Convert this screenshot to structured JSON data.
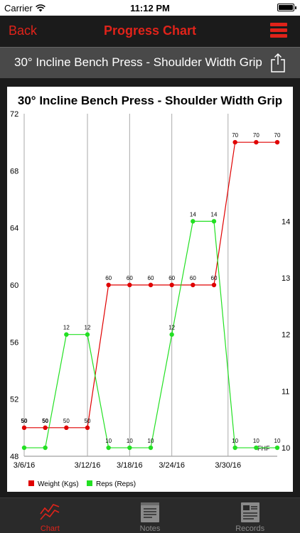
{
  "status_bar": {
    "carrier": "Carrier",
    "time": "11:12 PM"
  },
  "nav": {
    "back_label": "Back",
    "title": "Progress Chart"
  },
  "exercise": {
    "name": "30° Incline Bench Press - Shoulder Width Grip"
  },
  "colors": {
    "accent": "#e0231a",
    "weight": "#e00000",
    "reps": "#22e022"
  },
  "chart_data": {
    "type": "line",
    "title": "30° Incline Bench Press - Shoulder Width Grip",
    "x": [
      "3/6/16",
      "3/8/16",
      "3/10/16",
      "3/12/16",
      "3/16/16",
      "3/18/16",
      "3/20/16",
      "3/24/16",
      "3/26/16",
      "3/28/16",
      "3/31/16",
      "4/2/16",
      "4/4/16"
    ],
    "x_ticks": [
      "3/6/16",
      "3/12/16",
      "3/18/16",
      "3/24/16",
      "3/30/16"
    ],
    "series": [
      {
        "name": "Weight (Kgs)",
        "axis": "left",
        "values": [
          50,
          50,
          50,
          50,
          60,
          60,
          60,
          60,
          60,
          60,
          70,
          70,
          70
        ],
        "labels": [
          "50",
          "50",
          "50",
          "50",
          "60",
          "60",
          "60",
          "60",
          "60",
          "60",
          "70",
          "70",
          "70"
        ]
      },
      {
        "name": "Reps (Reps)",
        "axis": "right",
        "values": [
          10,
          10,
          12,
          12,
          10,
          10,
          10,
          12,
          14,
          14,
          10,
          10,
          10
        ],
        "labels": [
          "",
          "",
          "12",
          "12",
          "10",
          "10",
          "10",
          "12",
          "14",
          "14",
          "10",
          "10",
          "10"
        ]
      }
    ],
    "y_left": {
      "ticks": [
        "48",
        "52",
        "56",
        "60",
        "64",
        "68",
        "72"
      ],
      "ylim": [
        48,
        72
      ]
    },
    "y_right": {
      "ticks": [
        "10",
        "11",
        "12",
        "13",
        "14"
      ],
      "ylim": [
        9.85,
        15.9
      ]
    },
    "grid": "vertical",
    "legend": {
      "placement": "bottom-left",
      "items": [
        "Weight (Kgs)",
        "Reps (Reps)"
      ]
    },
    "annotation": "FHF"
  },
  "tabs": [
    {
      "label": "Chart",
      "icon": "chart-icon",
      "active": true
    },
    {
      "label": "Notes",
      "icon": "notes-icon",
      "active": false
    },
    {
      "label": "Records",
      "icon": "records-icon",
      "active": false
    }
  ]
}
